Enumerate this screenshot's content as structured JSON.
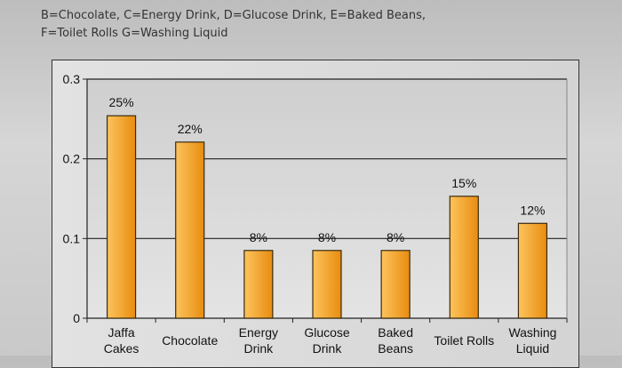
{
  "legend_lines": [
    "B=Chocolate, C=Energy Drink, D=Glucose Drink, E=Baked Beans,",
    "F=Toilet Rolls G=Washing Liquid"
  ],
  "chart_data": {
    "type": "bar",
    "categories": [
      "Jaffa Cakes",
      "Chocolate",
      "Energy Drink",
      "Glucose Drink",
      "Baked Beans",
      "Toilet Rolls",
      "Washing Liquid"
    ],
    "category_label_lines": [
      [
        "Jaffa",
        "Cakes"
      ],
      [
        "Chocolate"
      ],
      [
        "Energy",
        "Drink"
      ],
      [
        "Glucose",
        "Drink"
      ],
      [
        "Baked",
        "Beans"
      ],
      [
        "Toilet Rolls"
      ],
      [
        "Washing",
        "Liquid"
      ]
    ],
    "values": [
      0.254,
      0.221,
      0.085,
      0.085,
      0.085,
      0.153,
      0.119
    ],
    "data_labels": [
      "25%",
      "22%",
      "8%",
      "8%",
      "8%",
      "15%",
      "12%"
    ],
    "yticks": [
      "0",
      "0.1",
      "0.2",
      "0.3"
    ],
    "ylim": [
      0,
      0.3
    ],
    "grid": true,
    "bar_color": "#f0a030"
  }
}
